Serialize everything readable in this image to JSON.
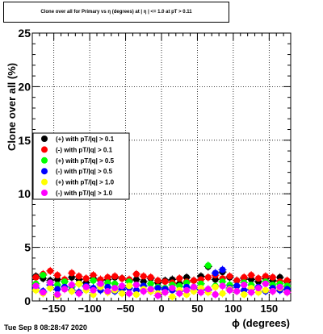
{
  "canvas": {
    "background": "#ffffff"
  },
  "chart_data": {
    "type": "scatter",
    "title": "Clone  over all for Primary vs η (degrees) at | η | <= 1.0 at pT > 0.11",
    "xlabel": "ϕ (degrees)",
    "ylabel": "Clone  over all (%)",
    "xlim": [
      -180,
      180
    ],
    "ylim": [
      0,
      25
    ],
    "xticks": [
      -150,
      -100,
      -50,
      0,
      50,
      100,
      150
    ],
    "yticks": [
      0,
      5,
      10,
      15,
      20,
      25
    ],
    "grid": true,
    "legend_position": "left-middle",
    "series": [
      {
        "name": "(+) with pT/|q| > 0.1",
        "color": "#000000",
        "x": [
          -175,
          -165,
          -155,
          -145,
          -135,
          -125,
          -115,
          -105,
          -95,
          -85,
          -75,
          -65,
          -55,
          -45,
          -35,
          -25,
          -15,
          -5,
          5,
          15,
          25,
          35,
          45,
          55,
          65,
          75,
          85,
          95,
          105,
          115,
          125,
          135,
          145,
          155,
          165,
          175
        ],
        "y": [
          2.3,
          2.1,
          1.9,
          2.0,
          1.8,
          2.2,
          2.0,
          1.7,
          2.1,
          1.9,
          2.0,
          2.2,
          2.1,
          1.9,
          2.0,
          1.8,
          2.1,
          1.7,
          1.9,
          2.0,
          1.6,
          2.2,
          1.9,
          2.3,
          3.2,
          2.0,
          2.7,
          2.2,
          1.9,
          2.1,
          2.0,
          1.8,
          2.1,
          1.9,
          2.2,
          1.8
        ]
      },
      {
        "name": "(-) with pT/|q| > 0.1",
        "color": "#ff0000",
        "x": [
          -175,
          -165,
          -155,
          -145,
          -135,
          -125,
          -115,
          -105,
          -95,
          -85,
          -75,
          -65,
          -55,
          -45,
          -35,
          -25,
          -15,
          -5,
          5,
          15,
          25,
          35,
          45,
          55,
          65,
          75,
          85,
          95,
          105,
          115,
          125,
          135,
          145,
          155,
          165,
          175
        ],
        "y": [
          2.2,
          2.5,
          2.8,
          2.4,
          2.0,
          2.6,
          2.3,
          2.1,
          2.4,
          2.0,
          2.2,
          2.3,
          2.1,
          2.0,
          2.5,
          2.3,
          2.2,
          1.9,
          1.8,
          1.7,
          2.1,
          1.8,
          1.9,
          2.0,
          2.2,
          2.4,
          2.1,
          2.3,
          1.9,
          2.2,
          2.4,
          2.1,
          2.3,
          2.2,
          1.8,
          1.9
        ]
      },
      {
        "name": "(+) with pT/|q| > 0.5",
        "color": "#00ff00",
        "x": [
          -175,
          -165,
          -155,
          -145,
          -135,
          -125,
          -115,
          -105,
          -95,
          -85,
          -75,
          -65,
          -55,
          -45,
          -35,
          -25,
          -15,
          -5,
          5,
          15,
          25,
          35,
          45,
          55,
          65,
          75,
          85,
          95,
          105,
          115,
          125,
          135,
          145,
          155,
          165,
          175
        ],
        "y": [
          1.6,
          2.4,
          1.7,
          1.5,
          1.8,
          1.3,
          1.6,
          1.4,
          1.9,
          1.5,
          1.7,
          1.6,
          1.3,
          1.8,
          1.5,
          1.4,
          1.6,
          1.3,
          1.2,
          1.5,
          1.4,
          1.7,
          1.3,
          1.6,
          3.3,
          1.4,
          1.8,
          1.5,
          1.4,
          1.7,
          1.5,
          1.3,
          1.8,
          1.5,
          1.6,
          1.4
        ]
      },
      {
        "name": "(-) with pT/|q| > 0.5",
        "color": "#0000ff",
        "x": [
          -175,
          -165,
          -155,
          -145,
          -135,
          -125,
          -115,
          -105,
          -95,
          -85,
          -75,
          -65,
          -55,
          -45,
          -35,
          -25,
          -15,
          -5,
          5,
          15,
          25,
          35,
          45,
          55,
          65,
          75,
          85,
          95,
          105,
          115,
          125,
          135,
          145,
          155,
          165,
          175
        ],
        "y": [
          1.2,
          0.9,
          1.5,
          1.1,
          1.3,
          1.0,
          0.8,
          1.4,
          1.2,
          1.0,
          1.3,
          0.9,
          1.1,
          1.2,
          1.0,
          1.4,
          0.9,
          1.2,
          1.1,
          1.0,
          0.9,
          1.3,
          1.2,
          1.1,
          1.0,
          2.6,
          2.9,
          1.2,
          1.4,
          1.0,
          1.1,
          1.3,
          0.9,
          1.2,
          1.0,
          1.1
        ]
      },
      {
        "name": "(+) with pT/|q| > 1.0",
        "color": "#ffff00",
        "x": [
          -175,
          -165,
          -155,
          -145,
          -135,
          -125,
          -115,
          -105,
          -95,
          -85,
          -75,
          -65,
          -55,
          -45,
          -35,
          -25,
          -15,
          -5,
          5,
          15,
          25,
          35,
          45,
          55,
          65,
          75,
          85,
          95,
          105,
          115,
          125,
          135,
          145,
          155,
          165,
          175
        ],
        "y": [
          1.0,
          0.7,
          1.2,
          0.5,
          1.1,
          0.9,
          1.6,
          1.0,
          0.6,
          1.3,
          0.8,
          1.0,
          0.7,
          1.4,
          0.6,
          1.1,
          0.9,
          0.7,
          0.8,
          0.4,
          1.0,
          0.6,
          0.9,
          1.2,
          0.8,
          1.3,
          0.7,
          1.1,
          0.9,
          0.6,
          1.2,
          0.8,
          1.0,
          0.9,
          1.2,
          0.8
        ]
      },
      {
        "name": "(-) with pT/|q| > 1.0",
        "color": "#ff00ff",
        "x": [
          -175,
          -165,
          -155,
          -145,
          -135,
          -125,
          -115,
          -105,
          -95,
          -85,
          -75,
          -65,
          -55,
          -45,
          -35,
          -25,
          -15,
          -5,
          5,
          15,
          25,
          35,
          45,
          55,
          65,
          75,
          85,
          95,
          105,
          115,
          125,
          135,
          145,
          155,
          165,
          175
        ],
        "y": [
          1.4,
          0.8,
          1.7,
          0.6,
          1.1,
          1.5,
          0.7,
          1.3,
          1.0,
          1.6,
          0.9,
          1.2,
          1.4,
          0.7,
          1.5,
          0.9,
          1.1,
          0.5,
          0.8,
          1.2,
          0.7,
          1.0,
          1.3,
          0.8,
          1.1,
          0.6,
          1.4,
          1.0,
          0.9,
          1.5,
          0.8,
          1.2,
          1.6,
          0.9,
          1.3,
          0.8
        ]
      }
    ]
  },
  "timestamp": "Tue Sep  8 08:28:47 2020"
}
